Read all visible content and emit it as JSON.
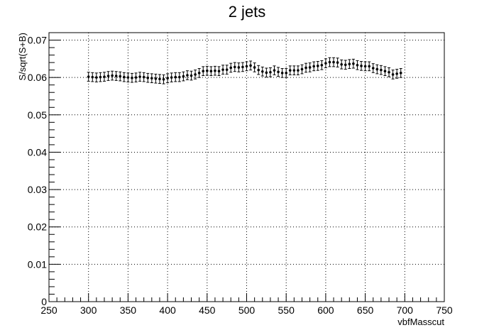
{
  "chart_data": {
    "type": "scatter",
    "title": "2 jets",
    "xlabel": "vbfMasscut",
    "ylabel": "S/sqrt(S+B)",
    "xlim": [
      250,
      750
    ],
    "ylim": [
      0,
      0.072
    ],
    "grid": true,
    "x_ticks": [
      "250",
      "300",
      "350",
      "400",
      "450",
      "500",
      "550",
      "600",
      "650",
      "700",
      "750"
    ],
    "y_ticks": [
      "0",
      "0.01",
      "0.02",
      "0.03",
      "0.04",
      "0.05",
      "0.06",
      "0.07"
    ],
    "series": [
      {
        "error": 0.0012,
        "points": [
          {
            "x": 300,
            "y": 0.0602
          },
          {
            "x": 305,
            "y": 0.0601
          },
          {
            "x": 310,
            "y": 0.06
          },
          {
            "x": 315,
            "y": 0.0601
          },
          {
            "x": 320,
            "y": 0.0602
          },
          {
            "x": 325,
            "y": 0.0604
          },
          {
            "x": 330,
            "y": 0.0605
          },
          {
            "x": 335,
            "y": 0.0604
          },
          {
            "x": 340,
            "y": 0.0603
          },
          {
            "x": 345,
            "y": 0.0601
          },
          {
            "x": 350,
            "y": 0.06
          },
          {
            "x": 355,
            "y": 0.0599
          },
          {
            "x": 360,
            "y": 0.06
          },
          {
            "x": 365,
            "y": 0.0602
          },
          {
            "x": 370,
            "y": 0.0601
          },
          {
            "x": 375,
            "y": 0.0599
          },
          {
            "x": 380,
            "y": 0.0598
          },
          {
            "x": 385,
            "y": 0.0597
          },
          {
            "x": 390,
            "y": 0.0596
          },
          {
            "x": 395,
            "y": 0.0595
          },
          {
            "x": 400,
            "y": 0.0598
          },
          {
            "x": 405,
            "y": 0.06
          },
          {
            "x": 410,
            "y": 0.0601
          },
          {
            "x": 415,
            "y": 0.0601
          },
          {
            "x": 420,
            "y": 0.0603
          },
          {
            "x": 425,
            "y": 0.0606
          },
          {
            "x": 430,
            "y": 0.0605
          },
          {
            "x": 435,
            "y": 0.0608
          },
          {
            "x": 440,
            "y": 0.0612
          },
          {
            "x": 445,
            "y": 0.0617
          },
          {
            "x": 450,
            "y": 0.0618
          },
          {
            "x": 455,
            "y": 0.0617
          },
          {
            "x": 460,
            "y": 0.0618
          },
          {
            "x": 465,
            "y": 0.0617
          },
          {
            "x": 470,
            "y": 0.0621
          },
          {
            "x": 475,
            "y": 0.0621
          },
          {
            "x": 480,
            "y": 0.0626
          },
          {
            "x": 485,
            "y": 0.0628
          },
          {
            "x": 490,
            "y": 0.0627
          },
          {
            "x": 495,
            "y": 0.0628
          },
          {
            "x": 500,
            "y": 0.063
          },
          {
            "x": 505,
            "y": 0.0632
          },
          {
            "x": 510,
            "y": 0.0627
          },
          {
            "x": 515,
            "y": 0.062
          },
          {
            "x": 520,
            "y": 0.0616
          },
          {
            "x": 525,
            "y": 0.0613
          },
          {
            "x": 530,
            "y": 0.0614
          },
          {
            "x": 535,
            "y": 0.0619
          },
          {
            "x": 540,
            "y": 0.0615
          },
          {
            "x": 545,
            "y": 0.0612
          },
          {
            "x": 550,
            "y": 0.0612
          },
          {
            "x": 555,
            "y": 0.0619
          },
          {
            "x": 560,
            "y": 0.0619
          },
          {
            "x": 565,
            "y": 0.0619
          },
          {
            "x": 570,
            "y": 0.0622
          },
          {
            "x": 575,
            "y": 0.0626
          },
          {
            "x": 580,
            "y": 0.0627
          },
          {
            "x": 585,
            "y": 0.063
          },
          {
            "x": 590,
            "y": 0.0631
          },
          {
            "x": 595,
            "y": 0.0633
          },
          {
            "x": 600,
            "y": 0.0638
          },
          {
            "x": 605,
            "y": 0.0641
          },
          {
            "x": 610,
            "y": 0.0641
          },
          {
            "x": 615,
            "y": 0.064
          },
          {
            "x": 620,
            "y": 0.0635
          },
          {
            "x": 625,
            "y": 0.0634
          },
          {
            "x": 630,
            "y": 0.0636
          },
          {
            "x": 635,
            "y": 0.0637
          },
          {
            "x": 640,
            "y": 0.0633
          },
          {
            "x": 645,
            "y": 0.0631
          },
          {
            "x": 650,
            "y": 0.063
          },
          {
            "x": 655,
            "y": 0.063
          },
          {
            "x": 660,
            "y": 0.0625
          },
          {
            "x": 665,
            "y": 0.0622
          },
          {
            "x": 670,
            "y": 0.062
          },
          {
            "x": 675,
            "y": 0.0617
          },
          {
            "x": 680,
            "y": 0.0614
          },
          {
            "x": 685,
            "y": 0.0608
          },
          {
            "x": 690,
            "y": 0.061
          },
          {
            "x": 695,
            "y": 0.0612
          }
        ]
      }
    ]
  }
}
